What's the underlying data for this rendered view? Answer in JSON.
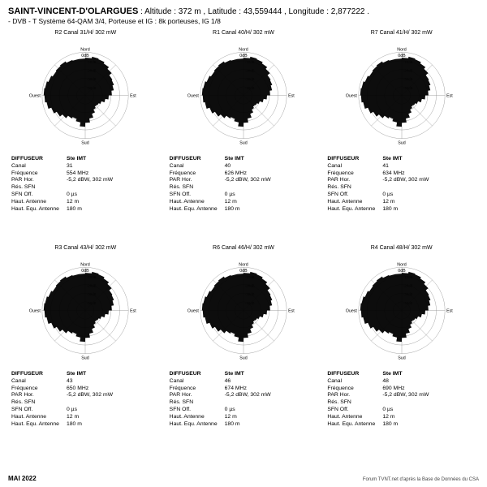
{
  "header": {
    "site_name": "SAINT-VINCENT-D'OLARGUES",
    "alt_label": "Altitude :",
    "alt_val": "372 m",
    "lat_label": "Latitude :",
    "lat_val": "43,559444",
    "lon_label": "Longitude :",
    "lon_val": "2,877222",
    "system_line": "- DVB - T    Système 64-QAM 3/4,  Porteuse et IG : 8k porteuses, IG 1/8"
  },
  "chart_style": {
    "ring_color": "#888888",
    "spoke_color": "#888888",
    "fill_color": "#000000",
    "fill_opacity": 0.95,
    "bg_color": "#ffffff",
    "n_rings": 5,
    "max_r": 55,
    "n_spokes": 8,
    "axis_labels": {
      "n": "Nord",
      "e": "Est",
      "s": "Sud",
      "w": "Ouest"
    },
    "ring_labels": [
      "-10dB",
      "-20dB",
      "-30dB",
      "-40dB"
    ]
  },
  "radial_pattern_deg_r": [
    [
      0,
      48
    ],
    [
      10,
      50
    ],
    [
      20,
      49
    ],
    [
      30,
      47
    ],
    [
      40,
      44
    ],
    [
      50,
      40
    ],
    [
      60,
      39
    ],
    [
      70,
      37
    ],
    [
      80,
      34
    ],
    [
      90,
      30
    ],
    [
      100,
      26
    ],
    [
      110,
      22
    ],
    [
      120,
      20
    ],
    [
      130,
      19
    ],
    [
      140,
      21
    ],
    [
      150,
      25
    ],
    [
      160,
      30
    ],
    [
      170,
      35
    ],
    [
      180,
      40
    ],
    [
      190,
      35
    ],
    [
      200,
      32
    ],
    [
      210,
      34
    ],
    [
      220,
      38
    ],
    [
      230,
      42
    ],
    [
      240,
      46
    ],
    [
      250,
      50
    ],
    [
      260,
      52
    ],
    [
      270,
      53
    ],
    [
      280,
      52
    ],
    [
      290,
      50
    ],
    [
      300,
      48
    ],
    [
      310,
      49
    ],
    [
      320,
      50
    ],
    [
      330,
      48
    ],
    [
      340,
      47
    ],
    [
      350,
      47
    ]
  ],
  "panels": [
    {
      "id": "R2",
      "title": "R2   Canal 31/H/ 302 mW",
      "canal": "31",
      "freq": "554 MHz"
    },
    {
      "id": "R1",
      "title": "R1   Canal 40/H/ 302 mW",
      "canal": "40",
      "freq": "626 MHz"
    },
    {
      "id": "R7",
      "title": "R7   Canal 41/H/ 302 mW",
      "canal": "41",
      "freq": "634 MHz"
    },
    {
      "id": "R3",
      "title": "R3   Canal 43/H/ 302 mW",
      "canal": "43",
      "freq": "650 MHz"
    },
    {
      "id": "R6",
      "title": "R6   Canal 46/H/ 302 mW",
      "canal": "46",
      "freq": "674 MHz"
    },
    {
      "id": "R4",
      "title": "R4   Canal 48/H/ 302 mW",
      "canal": "48",
      "freq": "690 MHz"
    }
  ],
  "common_info": {
    "hdr1": "DIFFUSEUR",
    "hdr2": "Ste IMT",
    "rows": [
      {
        "label": "Canal",
        "key": "canal"
      },
      {
        "label": "Fréquence",
        "key": "freq"
      },
      {
        "label": "PAR Hor.",
        "val": "-5,2 dBW, 302 mW"
      },
      {
        "label": "Rés. SFN",
        "val": ""
      },
      {
        "label": "SFN Off.",
        "val": "0 µs"
      },
      {
        "label": "Haut. Antenne",
        "val": "12 m"
      },
      {
        "label": "Haut. Equ. Antenne",
        "val": "180 m"
      }
    ]
  },
  "footer": {
    "date": "MAI 2022",
    "credit": "Forum TVNT.net d'après la Base de Données du CSA"
  }
}
